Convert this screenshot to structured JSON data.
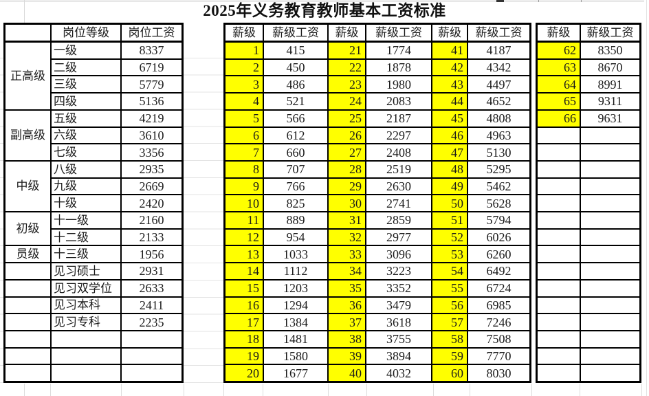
{
  "title": "2025年义务教育教师基本工资标准",
  "colors": {
    "highlight": "#ffff00",
    "table_border": "#000000",
    "gridline": "#d9d9d9",
    "text": "#1a1a1a"
  },
  "left_table": {
    "headers": {
      "group": "",
      "level": "岗位等级",
      "salary": "岗位工资"
    },
    "groups": [
      {
        "label": "正高级",
        "merged": true,
        "rows": [
          {
            "level": "一级",
            "salary": "8337"
          },
          {
            "level": "二级",
            "salary": "6719"
          },
          {
            "level": "三级",
            "salary": "5779"
          },
          {
            "level": "四级",
            "salary": "5136"
          }
        ]
      },
      {
        "label": "副高级",
        "merged": true,
        "rows": [
          {
            "level": "五级",
            "salary": "4219"
          },
          {
            "level": "六级",
            "salary": "3610"
          },
          {
            "level": "七级",
            "salary": "3356"
          }
        ]
      },
      {
        "label": "中级",
        "merged": true,
        "rows": [
          {
            "level": "八级",
            "salary": "2935"
          },
          {
            "level": "九级",
            "salary": "2669"
          },
          {
            "level": "十级",
            "salary": "2420"
          }
        ]
      },
      {
        "label": "初级",
        "merged": true,
        "rows": [
          {
            "level": "十一级",
            "salary": "2160"
          },
          {
            "level": "十二级",
            "salary": "2133"
          }
        ]
      },
      {
        "label": "员级",
        "merged": true,
        "rows": [
          {
            "level": "十三级",
            "salary": "1956"
          }
        ]
      },
      {
        "label": "",
        "merged": false,
        "rows": [
          {
            "level": "见习硕士",
            "salary": "2931"
          },
          {
            "level": "见习双学位",
            "salary": "2633"
          },
          {
            "level": "见习本科",
            "salary": "2411"
          },
          {
            "level": "见习专科",
            "salary": "2235"
          }
        ]
      }
    ],
    "empty_rows": 3
  },
  "right_table": {
    "grade_header": "薪级",
    "salary_header": "薪级工资",
    "main_columns": [
      {
        "rows": [
          {
            "grade": "1",
            "salary": "415"
          },
          {
            "grade": "2",
            "salary": "450"
          },
          {
            "grade": "3",
            "salary": "486"
          },
          {
            "grade": "4",
            "salary": "521"
          },
          {
            "grade": "5",
            "salary": "566"
          },
          {
            "grade": "6",
            "salary": "612"
          },
          {
            "grade": "7",
            "salary": "660"
          },
          {
            "grade": "8",
            "salary": "707"
          },
          {
            "grade": "9",
            "salary": "766"
          },
          {
            "grade": "10",
            "salary": "825"
          },
          {
            "grade": "11",
            "salary": "889"
          },
          {
            "grade": "12",
            "salary": "954"
          },
          {
            "grade": "13",
            "salary": "1033"
          },
          {
            "grade": "14",
            "salary": "1112"
          },
          {
            "grade": "15",
            "salary": "1203"
          },
          {
            "grade": "16",
            "salary": "1294"
          },
          {
            "grade": "17",
            "salary": "1384"
          },
          {
            "grade": "18",
            "salary": "1481"
          },
          {
            "grade": "19",
            "salary": "1580"
          },
          {
            "grade": "20",
            "salary": "1677"
          }
        ]
      },
      {
        "rows": [
          {
            "grade": "21",
            "salary": "1774"
          },
          {
            "grade": "22",
            "salary": "1878"
          },
          {
            "grade": "23",
            "salary": "1980"
          },
          {
            "grade": "24",
            "salary": "2083"
          },
          {
            "grade": "25",
            "salary": "2187"
          },
          {
            "grade": "26",
            "salary": "2297"
          },
          {
            "grade": "27",
            "salary": "2408"
          },
          {
            "grade": "28",
            "salary": "2519"
          },
          {
            "grade": "29",
            "salary": "2630"
          },
          {
            "grade": "30",
            "salary": "2741"
          },
          {
            "grade": "31",
            "salary": "2859"
          },
          {
            "grade": "32",
            "salary": "2977"
          },
          {
            "grade": "33",
            "salary": "3096"
          },
          {
            "grade": "34",
            "salary": "3223"
          },
          {
            "grade": "35",
            "salary": "3352"
          },
          {
            "grade": "36",
            "salary": "3479"
          },
          {
            "grade": "37",
            "salary": "3618"
          },
          {
            "grade": "38",
            "salary": "3755"
          },
          {
            "grade": "39",
            "salary": "3894"
          },
          {
            "grade": "40",
            "salary": "4032"
          }
        ]
      },
      {
        "rows": [
          {
            "grade": "41",
            "salary": "4187"
          },
          {
            "grade": "42",
            "salary": "4342"
          },
          {
            "grade": "43",
            "salary": "4497"
          },
          {
            "grade": "44",
            "salary": "4652"
          },
          {
            "grade": "45",
            "salary": "4808"
          },
          {
            "grade": "46",
            "salary": "4963"
          },
          {
            "grade": "47",
            "salary": "5130"
          },
          {
            "grade": "48",
            "salary": "5295"
          },
          {
            "grade": "49",
            "salary": "5462"
          },
          {
            "grade": "50",
            "salary": "5628"
          },
          {
            "grade": "51",
            "salary": "5794"
          },
          {
            "grade": "52",
            "salary": "6026"
          },
          {
            "grade": "53",
            "salary": "6260"
          },
          {
            "grade": "54",
            "salary": "6492"
          },
          {
            "grade": "55",
            "salary": "6724"
          },
          {
            "grade": "56",
            "salary": "6985"
          },
          {
            "grade": "57",
            "salary": "7246"
          },
          {
            "grade": "58",
            "salary": "7508"
          },
          {
            "grade": "59",
            "salary": "7770"
          },
          {
            "grade": "60",
            "salary": "8030"
          }
        ]
      }
    ],
    "extra_column": {
      "rows": [
        {
          "grade": "62",
          "salary": "8350"
        },
        {
          "grade": "63",
          "salary": "8670"
        },
        {
          "grade": "64",
          "salary": "8991"
        },
        {
          "grade": "65",
          "salary": "9311"
        },
        {
          "grade": "66",
          "salary": "9631"
        }
      ],
      "empty_rows": 15
    }
  }
}
